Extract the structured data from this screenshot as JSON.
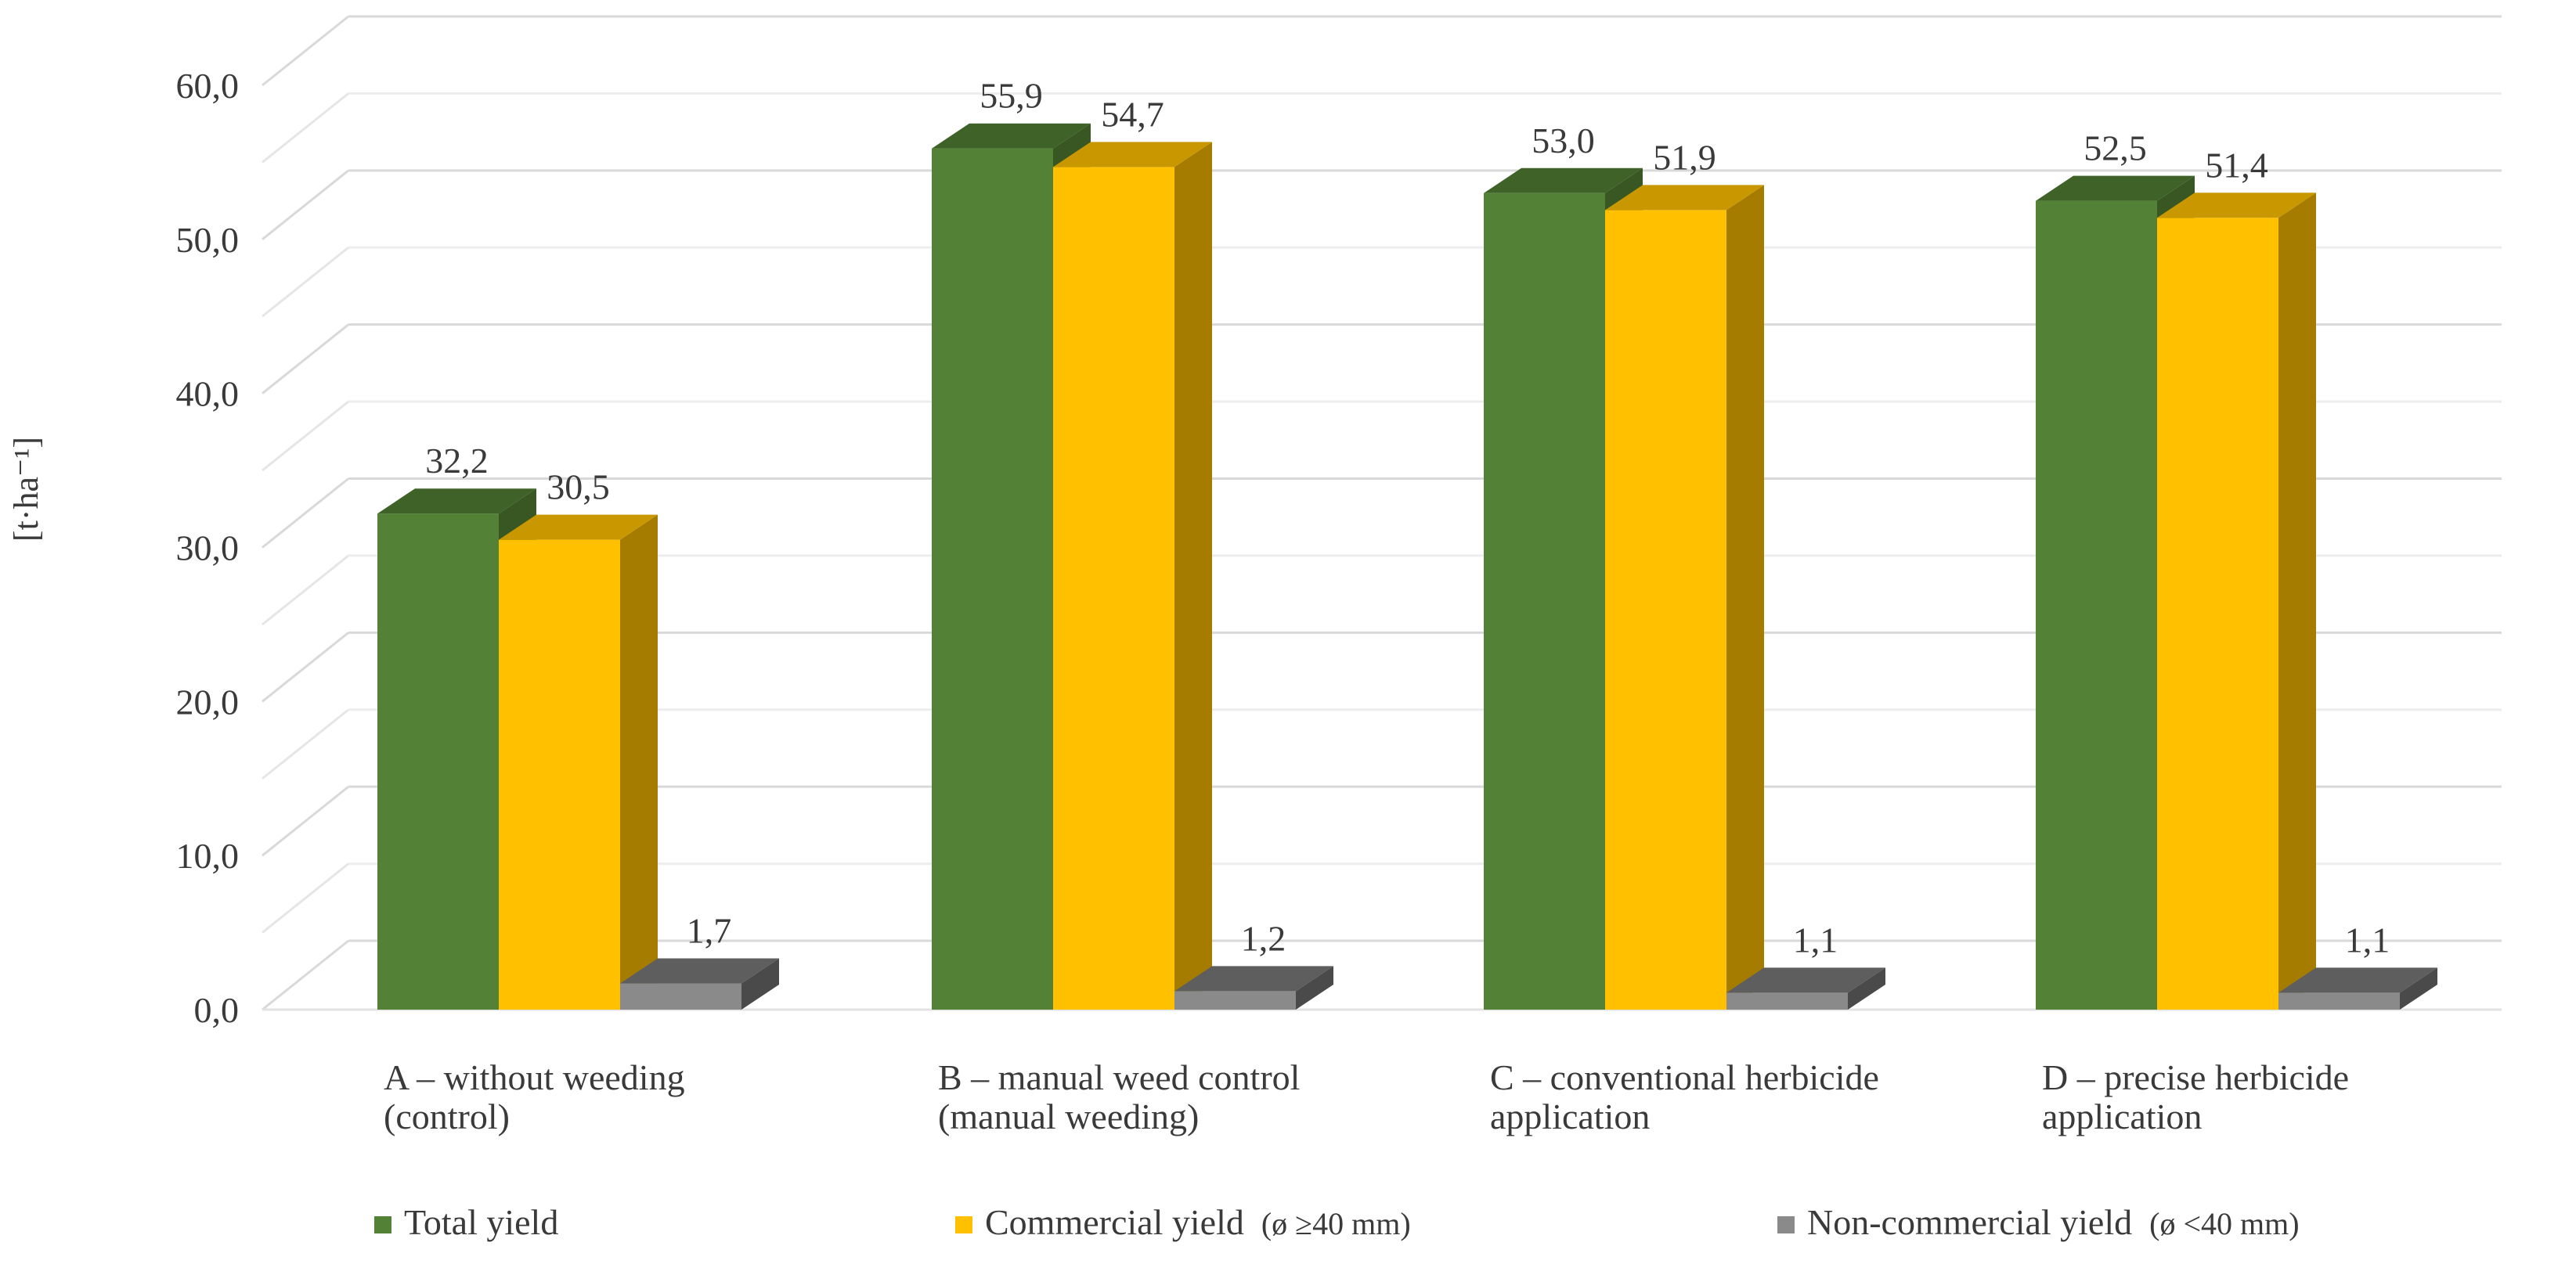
{
  "chart_data": {
    "type": "bar",
    "title": "",
    "xlabel": "",
    "ylabel": "[t·ha⁻¹]",
    "ylim": [
      0,
      60
    ],
    "yticks": [
      "0,0",
      "10,0",
      "20,0",
      "30,0",
      "40,0",
      "50,0",
      "60,0"
    ],
    "grid": true,
    "legend_position": "bottom",
    "categories": [
      [
        "A – without weeding",
        "(control)"
      ],
      [
        "B – manual weed control",
        "(manual weeding)"
      ],
      [
        "C – conventional herbicide",
        "application"
      ],
      [
        "D – precise herbicide",
        "application"
      ]
    ],
    "series": [
      {
        "name": "Total yield",
        "values": [
          32.2,
          55.9,
          53.0,
          52.5
        ],
        "labels": [
          "32,2",
          "55,9",
          "53,0",
          "52,5"
        ],
        "color": "#538135",
        "color_top": "#3e6228",
        "color_side": "#385723"
      },
      {
        "name": "Commercial yield",
        "name_suffix": "(ø ≥40 mm)",
        "values": [
          30.5,
          54.7,
          51.9,
          51.4
        ],
        "labels": [
          "30,5",
          "54,7",
          "51,9",
          "51,4"
        ],
        "color": "#ffc000",
        "color_top": "#c99700",
        "color_side": "#a67c00"
      },
      {
        "name": "Non-commercial yield",
        "name_suffix": "(ø <40 mm)",
        "values": [
          1.7,
          1.2,
          1.1,
          1.1
        ],
        "labels": [
          "1,7",
          "1,2",
          "1,1",
          "1,1"
        ],
        "color": "#8a8a8a",
        "color_top": "#5e5e5e",
        "color_side": "#4a4a4a"
      }
    ]
  }
}
